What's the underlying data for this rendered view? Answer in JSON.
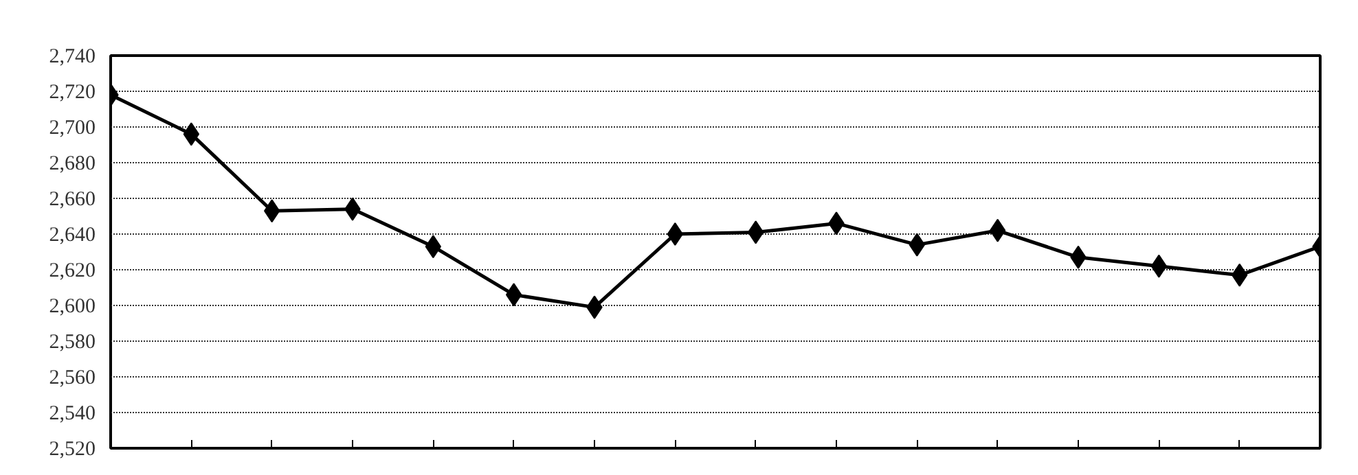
{
  "chart_data": {
    "type": "line",
    "categories": [
      null,
      null,
      null,
      null,
      null,
      null,
      null,
      null,
      null,
      null,
      null,
      null,
      null,
      null,
      null,
      null
    ],
    "series": [
      {
        "color": "#000000",
        "values": [
          2718,
          2696,
          2653,
          2654,
          2633,
          2606,
          2599,
          2640,
          2641,
          2646,
          2634,
          2642,
          2627,
          2622,
          2617,
          2633
        ]
      }
    ],
    "ylim": [
      2520,
      2740
    ],
    "yticks": [
      {
        "value": 2520,
        "label": "2,520"
      },
      {
        "value": 2540,
        "label": "2,540"
      },
      {
        "value": 2560,
        "label": "2,560"
      },
      {
        "value": 2580,
        "label": "2,580"
      },
      {
        "value": 2600,
        "label": "2,600"
      },
      {
        "value": 2620,
        "label": "2,620"
      },
      {
        "value": 2640,
        "label": "2,640"
      },
      {
        "value": 2660,
        "label": "2,660"
      },
      {
        "value": 2680,
        "label": "2,680"
      },
      {
        "value": 2700,
        "label": "2,700"
      },
      {
        "value": 2720,
        "label": "2,720"
      },
      {
        "value": 2740,
        "label": "2,740"
      }
    ],
    "grid": "y",
    "marker": "diamond",
    "line_style": "solid",
    "tick_labels": "y"
  }
}
